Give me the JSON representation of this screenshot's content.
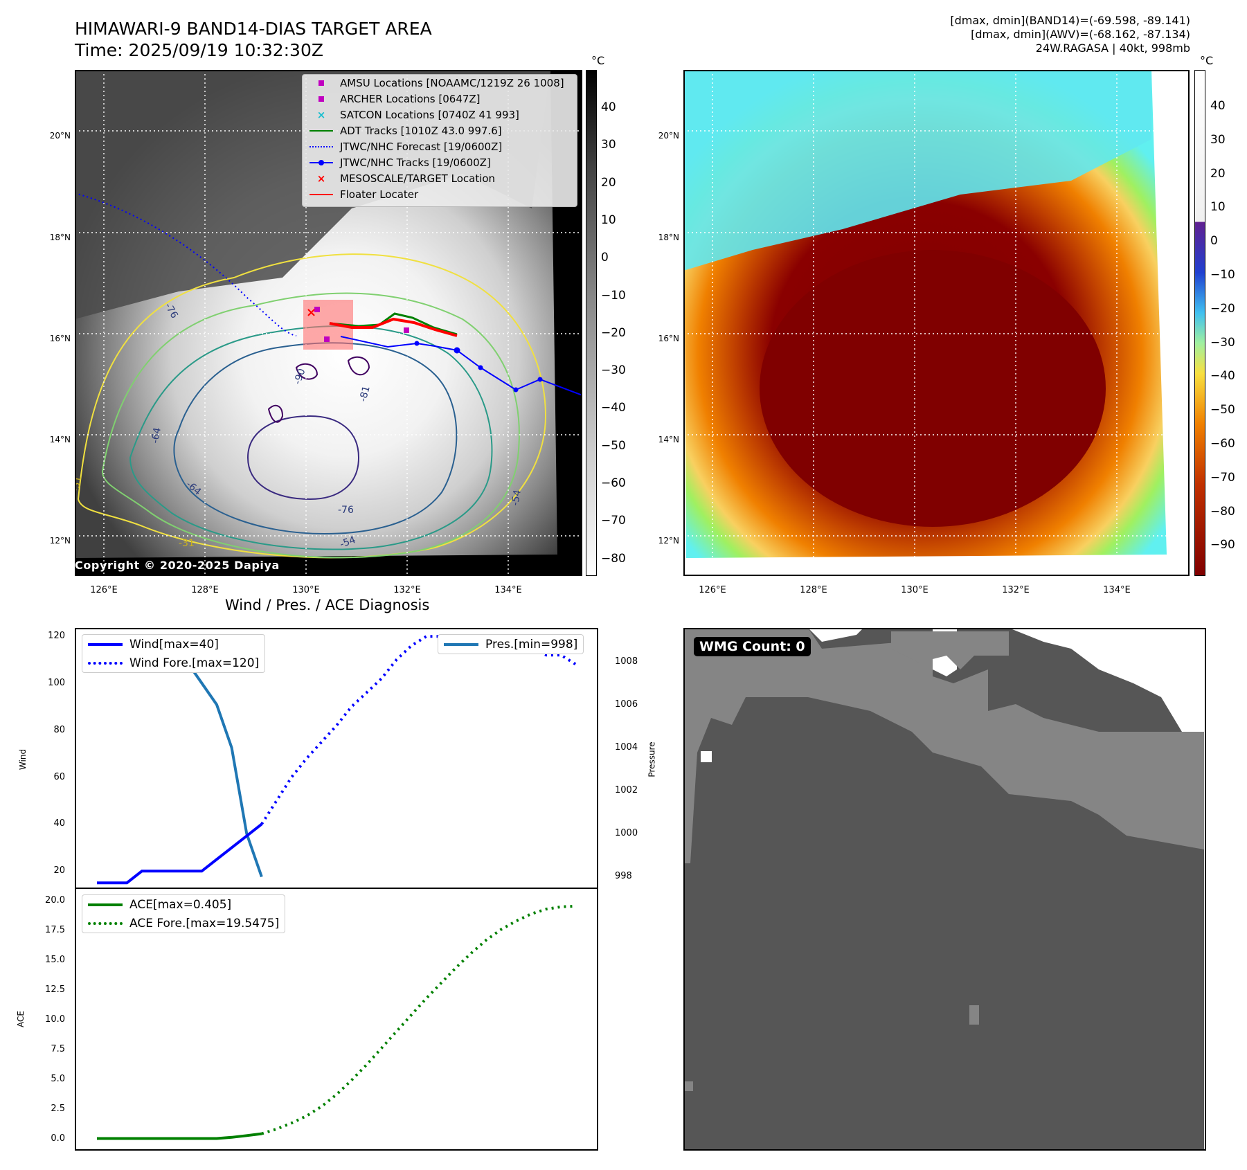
{
  "header": {
    "title_line1": "HIMAWARI-9 BAND14-DIAS TARGET AREA",
    "title_line2": "Time: 2025/09/19 10:32:30Z",
    "info_line1": "[dmax, dmin](BAND14)=(-69.598, -89.141)",
    "info_line2": "[dmax, dmin](AWV)=(-68.162, -87.134)",
    "info_line3": "24W.RAGASA | 40kt, 998mb"
  },
  "map_axes": {
    "lat_labels": [
      "20°N",
      "18°N",
      "16°N",
      "14°N",
      "12°N"
    ],
    "lon_labels": [
      "126°E",
      "128°E",
      "130°E",
      "132°E",
      "134°E"
    ]
  },
  "ir_panel": {
    "legend": [
      {
        "label": "AMSU Locations [NOAAMC/1219Z 26 1008]",
        "color": "#c000c0",
        "symbol": "square"
      },
      {
        "label": "ARCHER Locations [0647Z]",
        "color": "#c000c0",
        "symbol": "square"
      },
      {
        "label": "SATCON Locations [0740Z 41 993]",
        "color": "#17becf",
        "symbol": "x"
      },
      {
        "label": "ADT Tracks [1010Z 43.0 997.6]",
        "color": "#008000",
        "symbol": "line"
      },
      {
        "label": "JTWC/NHC Forecast [19/0600Z]",
        "color": "#0000ff",
        "symbol": "dotted"
      },
      {
        "label": "JTWC/NHC Tracks [19/0600Z]",
        "color": "#0000ff",
        "symbol": "line-dot"
      },
      {
        "label": "MESOSCALE/TARGET Location",
        "color": "#ff0000",
        "symbol": "x"
      },
      {
        "label": "Floater Locater",
        "color": "#ff0000",
        "symbol": "line"
      }
    ],
    "contour_labels": [
      "-76",
      "-90",
      "-81",
      "-76",
      "-64",
      "-64",
      "-54",
      "-31",
      "-54",
      "-31"
    ],
    "colorbar": {
      "unit": "°C",
      "ticks": [
        "40",
        "30",
        "20",
        "10",
        "0",
        "−10",
        "−20",
        "−30",
        "−40",
        "−50",
        "−60",
        "−70",
        "−80"
      ]
    },
    "copyright": "Copyright © 2020-2025 Dapiya"
  },
  "color_panel": {
    "colorbar": {
      "unit": "°C",
      "ticks": [
        "40",
        "30",
        "20",
        "10",
        "0",
        "−10",
        "−20",
        "−30",
        "−40",
        "−50",
        "−60",
        "−70",
        "−80",
        "−90"
      ]
    }
  },
  "wind_panel": {
    "title": "Wind / Pres. / ACE Diagnosis",
    "ylabel_left": "Wind",
    "ylabel_right": "Pressure",
    "legend_left": [
      {
        "label": "Wind[max=40]",
        "style": "solid",
        "color": "#0000ff"
      },
      {
        "label": "Wind Fore.[max=120]",
        "style": "dotted",
        "color": "#0000ff"
      }
    ],
    "legend_right": [
      {
        "label": "Pres.[min=998]",
        "style": "solid-dotted",
        "color": "#1f77b4"
      }
    ],
    "left_ticks": [
      "120",
      "100",
      "80",
      "60",
      "40",
      "20"
    ],
    "right_ticks": [
      "1008",
      "1006",
      "1004",
      "1002",
      "1000",
      "998"
    ]
  },
  "ace_panel": {
    "ylabel": "ACE",
    "legend": [
      {
        "label": "ACE[max=0.405]",
        "style": "solid",
        "color": "#008000"
      },
      {
        "label": "ACE Fore.[max=19.5475]",
        "style": "dotted",
        "color": "#008000"
      }
    ],
    "ticks": [
      "20.0",
      "17.5",
      "15.0",
      "12.5",
      "10.0",
      "7.5",
      "5.0",
      "2.5",
      "0.0"
    ]
  },
  "wmg_panel": {
    "badge": "WMG Count: 0"
  },
  "chart_data": [
    {
      "type": "line",
      "title": "Wind / Pres. / ACE Diagnosis",
      "ylabel": "Wind",
      "ylim": [
        13,
        123
      ],
      "series": [
        {
          "name": "Wind[max=40]",
          "x": [
            0,
            1,
            2,
            3,
            4,
            5,
            6,
            7,
            8,
            9,
            10,
            11
          ],
          "y": [
            15,
            15,
            15,
            20,
            20,
            20,
            20,
            20,
            25,
            30,
            35,
            40
          ]
        },
        {
          "name": "Wind Fore.[max=120]",
          "x": [
            11,
            12,
            13,
            14,
            15,
            16,
            17,
            18,
            19,
            20,
            21,
            22,
            23,
            24,
            25,
            26,
            27,
            28,
            29,
            30,
            31,
            32
          ],
          "y": [
            40,
            50,
            60,
            68,
            75,
            82,
            90,
            96,
            102,
            110,
            116,
            120,
            120,
            120,
            120,
            120,
            118,
            118,
            115,
            112,
            112,
            108
          ]
        }
      ]
    },
    {
      "type": "line",
      "ylabel": "Pressure",
      "ylim": [
        997.5,
        1009.5
      ],
      "series": [
        {
          "name": "Pres.[min=998]",
          "x": [
            0,
            1,
            2,
            3,
            4,
            5,
            6,
            7,
            8,
            9,
            10,
            11
          ],
          "y": [
            1009,
            1008,
            1008,
            1008,
            1008,
            1008,
            1008,
            1007,
            1006,
            1004,
            1000,
            998
          ]
        }
      ]
    },
    {
      "type": "line",
      "ylabel": "ACE",
      "ylim": [
        -0.9,
        21
      ],
      "series": [
        {
          "name": "ACE[max=0.405]",
          "x": [
            0,
            1,
            2,
            3,
            4,
            5,
            6,
            7,
            8,
            9,
            10,
            11
          ],
          "y": [
            0,
            0,
            0,
            0,
            0,
            0,
            0,
            0,
            0,
            0.1,
            0.25,
            0.405
          ]
        },
        {
          "name": "ACE Fore.[max=19.5475]",
          "x": [
            11,
            12,
            13,
            14,
            15,
            16,
            17,
            18,
            19,
            20,
            21,
            22,
            23,
            24,
            25,
            26,
            27,
            28,
            29,
            30,
            31,
            32
          ],
          "y": [
            0.405,
            0.8,
            1.3,
            1.9,
            2.7,
            3.7,
            4.9,
            6.2,
            7.6,
            9.0,
            10.4,
            11.8,
            13.1,
            14.4,
            15.6,
            16.7,
            17.6,
            18.3,
            18.9,
            19.3,
            19.5,
            19.5475
          ]
        }
      ]
    }
  ]
}
